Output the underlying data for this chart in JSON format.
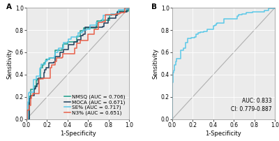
{
  "panel_A_label": "A",
  "panel_B_label": "B",
  "xlabel": "1-Specificity",
  "ylabel": "Sensitivity",
  "xlim": [
    0.0,
    1.0
  ],
  "ylim": [
    0.0,
    1.0
  ],
  "xticks": [
    0.0,
    0.2,
    0.4,
    0.6,
    0.8,
    1.0
  ],
  "yticks": [
    0.0,
    0.2,
    0.4,
    0.6,
    0.8,
    1.0
  ],
  "background_color": "#ebebeb",
  "diagonal_color": "#b0b0b0",
  "curves_A": [
    {
      "name": "NMSQ (AUC = 0.706)",
      "color": "#1a9e89",
      "auc": 0.706,
      "seed": 101,
      "lw": 1.1
    },
    {
      "name": "MOCA (AUC = 0.671)",
      "color": "#1e3d59",
      "auc": 0.671,
      "seed": 202,
      "lw": 1.1
    },
    {
      "name": "SE% (AUC = 0.717)",
      "color": "#5bc8e8",
      "auc": 0.717,
      "seed": 303,
      "lw": 1.1
    },
    {
      "name": "N3% (AUC = 0.651)",
      "color": "#e8604a",
      "auc": 0.651,
      "seed": 404,
      "lw": 1.1
    }
  ],
  "curve_B": {
    "name": "AUC: 0.833\nCI: 0.779-0.887",
    "color": "#5bc8e8",
    "auc": 0.833,
    "seed": 505,
    "lw": 1.1
  },
  "legend_fontsize": 5.2,
  "axis_fontsize": 6,
  "tick_fontsize": 5.5,
  "label_fontsize": 7.5,
  "annot_fontsize": 5.5
}
